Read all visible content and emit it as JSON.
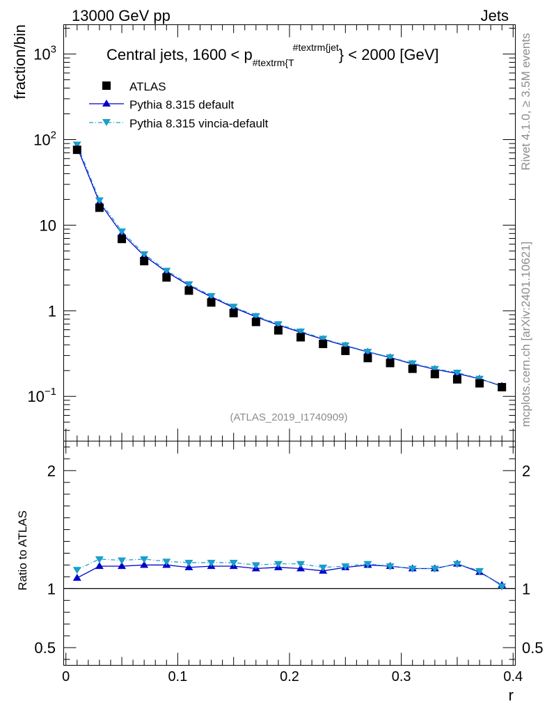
{
  "header": {
    "left": "13000 GeV pp",
    "right": "Jets"
  },
  "side_labels": {
    "rivet": "Rivet 4.1.0, ≥ 3.5M events",
    "mcplots": "mcplots.cern.ch [arXiv:2401.10621]"
  },
  "chart_data": {
    "type": "line",
    "title_main": "Central jets, 1600 < p",
    "title_sub": "#textrm{T",
    "title_sup": "#textrm{jet",
    "title_end": "} < 2000 [GeV]",
    "analysis_id": "(ATLAS_2019_I1740909)",
    "xlabel": "r",
    "ylabel_main": "fraction/bin",
    "ylabel_ratio": "Ratio to ATLAS",
    "xlim": [
      -0.002,
      0.402
    ],
    "ylim_main": [
      0.03,
      2200
    ],
    "ylim_ratio": [
      0.35,
      2.25
    ],
    "x_ticks": [
      {
        "v": 0,
        "label": "0"
      },
      {
        "v": 0.1,
        "label": "0.1"
      },
      {
        "v": 0.2,
        "label": "0.2"
      },
      {
        "v": 0.3,
        "label": "0.3"
      },
      {
        "v": 0.4,
        "label": "0.4"
      }
    ],
    "main_ticks": [
      {
        "v": 0.1,
        "base": "10",
        "exp": "−1",
        "label": ""
      },
      {
        "v": 1,
        "base": "",
        "exp": "",
        "label": "1"
      },
      {
        "v": 10,
        "base": "",
        "exp": "",
        "label": "10"
      },
      {
        "v": 100,
        "base": "10",
        "exp": "2",
        "label": ""
      },
      {
        "v": 1000,
        "base": "10",
        "exp": "3",
        "label": ""
      }
    ],
    "ratio_ticks": [
      {
        "v": 0.5,
        "label": "0.5"
      },
      {
        "v": 1,
        "label": "1"
      },
      {
        "v": 2,
        "label": "2"
      }
    ],
    "x": [
      0.01,
      0.03,
      0.05,
      0.07,
      0.09,
      0.11,
      0.13,
      0.15,
      0.17,
      0.19,
      0.21,
      0.23,
      0.25,
      0.27,
      0.29,
      0.31,
      0.33,
      0.35,
      0.37,
      0.39
    ],
    "series": [
      {
        "name": "ATLAS",
        "style": "square",
        "color": "#000000",
        "values": [
          76,
          16,
          6.9,
          3.8,
          2.45,
          1.72,
          1.25,
          0.94,
          0.74,
          0.59,
          0.49,
          0.41,
          0.34,
          0.28,
          0.245,
          0.21,
          0.182,
          0.158,
          0.142,
          0.128
        ]
      },
      {
        "name": "Pythia 8.315 default",
        "style": "triangle-up",
        "color": "#0000cc",
        "values": [
          82,
          18.5,
          8.0,
          4.4,
          2.85,
          1.98,
          1.45,
          1.09,
          0.85,
          0.68,
          0.56,
          0.465,
          0.39,
          0.33,
          0.284,
          0.239,
          0.207,
          0.185,
          0.16,
          0.132
        ],
        "ratio": [
          1.09,
          1.19,
          1.19,
          1.2,
          1.2,
          1.18,
          1.19,
          1.19,
          1.17,
          1.18,
          1.17,
          1.15,
          1.18,
          1.2,
          1.19,
          1.17,
          1.17,
          1.21,
          1.14,
          1.03
        ]
      },
      {
        "name": "Pythia 8.315 vincia-default",
        "style": "triangle-down",
        "color": "#1a9ecb",
        "values": [
          88,
          19.6,
          8.5,
          4.6,
          2.95,
          2.05,
          1.49,
          1.12,
          0.87,
          0.7,
          0.575,
          0.473,
          0.396,
          0.333,
          0.287,
          0.244,
          0.21,
          0.19,
          0.161,
          0.13
        ],
        "ratio": [
          1.16,
          1.25,
          1.24,
          1.25,
          1.23,
          1.22,
          1.22,
          1.22,
          1.2,
          1.21,
          1.21,
          1.18,
          1.19,
          1.21,
          1.19,
          1.17,
          1.17,
          1.21,
          1.15,
          1.02
        ]
      }
    ]
  }
}
